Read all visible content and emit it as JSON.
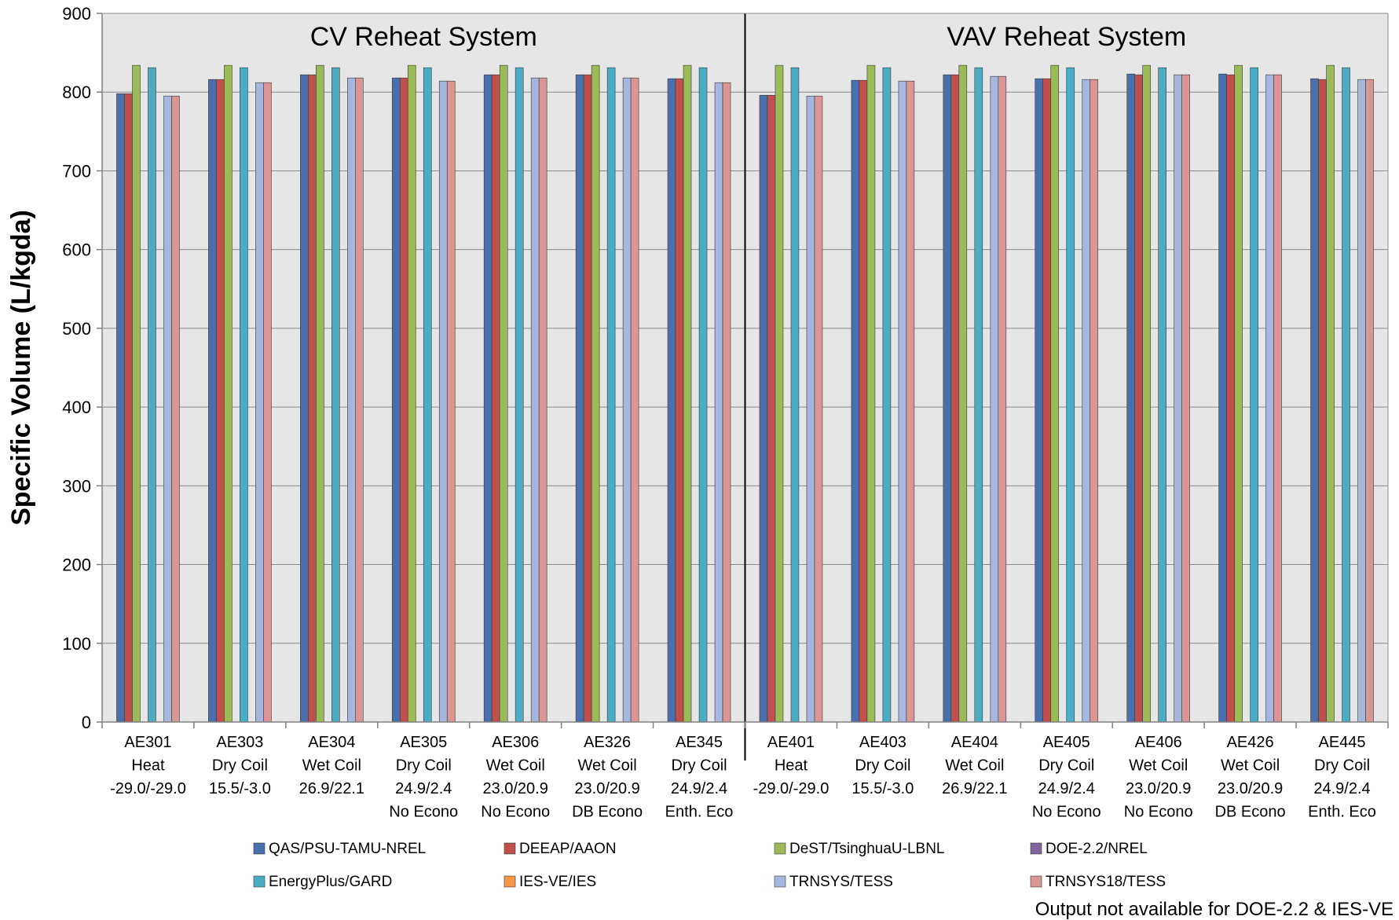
{
  "chart_data": {
    "type": "bar",
    "title": "",
    "ylabel": "Specific Volume (L/kgda)",
    "xlabel": "",
    "ylim": [
      0,
      900
    ],
    "yticks": [
      "0",
      "100",
      "200",
      "300",
      "400",
      "500",
      "600",
      "700",
      "800",
      "900"
    ],
    "grid": true,
    "legend_position": "bottom",
    "panels": [
      {
        "title": "CV Reheat System",
        "start": 0,
        "end": 7
      },
      {
        "title": "VAV Reheat System",
        "start": 7,
        "end": 14
      }
    ],
    "categories": [
      [
        "AE301",
        "Heat",
        "-29.0/-29.0"
      ],
      [
        "AE303",
        "Dry Coil",
        "15.5/-3.0"
      ],
      [
        "AE304",
        "Wet Coil",
        "26.9/22.1"
      ],
      [
        "AE305",
        "Dry Coil",
        "24.9/2.4",
        "No Econo"
      ],
      [
        "AE306",
        "Wet Coil",
        "23.0/20.9",
        "No Econo"
      ],
      [
        "AE326",
        "Wet Coil",
        "23.0/20.9",
        "DB  Econo"
      ],
      [
        "AE345",
        "Dry Coil",
        "24.9/2.4",
        "Enth. Eco"
      ],
      [
        "AE401",
        "Heat",
        "-29.0/-29.0"
      ],
      [
        "AE403",
        "Dry Coil",
        "15.5/-3.0"
      ],
      [
        "AE404",
        "Wet Coil",
        "26.9/22.1"
      ],
      [
        "AE405",
        "Dry Coil",
        "24.9/2.4",
        "No Econo"
      ],
      [
        "AE406",
        "Wet Coil",
        "23.0/20.9",
        "No Econo"
      ],
      [
        "AE426",
        "Wet Coil",
        "23.0/20.9",
        "DB  Econo"
      ],
      [
        "AE445",
        "Dry Coil",
        "24.9/2.4",
        "Enth. Eco"
      ]
    ],
    "series": [
      {
        "name": "QAS/PSU-TAMU-NREL",
        "color": "#4a6fad",
        "values": [
          798,
          816,
          822,
          818,
          822,
          822,
          817,
          796,
          815,
          822,
          817,
          823,
          823,
          817
        ]
      },
      {
        "name": "DEEAP/AAON",
        "color": "#c0504d",
        "values": [
          798,
          816,
          822,
          818,
          822,
          822,
          817,
          796,
          815,
          822,
          817,
          822,
          822,
          816
        ]
      },
      {
        "name": "DeST/TsinghuaU-LBNL",
        "color": "#9bbb59",
        "values": [
          834,
          834,
          834,
          834,
          834,
          834,
          834,
          834,
          834,
          834,
          834,
          834,
          834,
          834
        ]
      },
      {
        "name": "DOE-2.2/NREL",
        "color": "#8064a2",
        "values": [
          null,
          null,
          null,
          null,
          null,
          null,
          null,
          null,
          null,
          null,
          null,
          null,
          null,
          null
        ]
      },
      {
        "name": "EnergyPlus/GARD",
        "color": "#4bacc6",
        "values": [
          831,
          831,
          831,
          831,
          831,
          831,
          831,
          831,
          831,
          831,
          831,
          831,
          831,
          831
        ]
      },
      {
        "name": "IES-VE/IES",
        "color": "#f79646",
        "values": [
          null,
          null,
          null,
          null,
          null,
          null,
          null,
          null,
          null,
          null,
          null,
          null,
          null,
          null
        ]
      },
      {
        "name": "TRNSYS/TESS",
        "color": "#a5b6df",
        "values": [
          795,
          812,
          818,
          814,
          818,
          818,
          812,
          795,
          814,
          820,
          816,
          822,
          822,
          816
        ]
      },
      {
        "name": "TRNSYS18/TESS",
        "color": "#d99694",
        "values": [
          795,
          812,
          818,
          814,
          818,
          818,
          812,
          795,
          814,
          820,
          816,
          822,
          822,
          816
        ]
      }
    ],
    "footnote": "Output not available for DOE-2.2 & IES-VE"
  }
}
